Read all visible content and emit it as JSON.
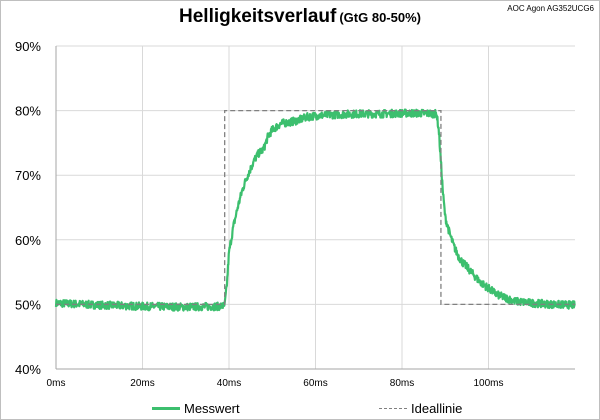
{
  "colors": {
    "messwert": "#3cbf6e",
    "ideallinie": "#808080",
    "grid": "#d9d9d9"
  },
  "device_label": "AOC Agon AG352UCG6",
  "chart_data": {
    "type": "line",
    "title": "Helligkeitsverlauf",
    "subtitle": "(GtG 80-50%)",
    "xlabel": "",
    "ylabel": "",
    "xlim": [
      0,
      120
    ],
    "ylim": [
      40,
      90
    ],
    "x_ticks": [
      0,
      20,
      40,
      60,
      80,
      100
    ],
    "x_tick_labels": [
      "0ms",
      "20ms",
      "40ms",
      "60ms",
      "80ms",
      "100ms"
    ],
    "y_ticks": [
      40,
      50,
      60,
      70,
      80,
      90
    ],
    "y_tick_labels": [
      "40%",
      "50%",
      "60%",
      "70%",
      "80%",
      "90%"
    ],
    "grid": true,
    "legend_position": "bottom",
    "series": [
      {
        "name": "Messwert",
        "style": "solid",
        "x": [
          0,
          10,
          20,
          30,
          38,
          39,
          39.5,
          40,
          41,
          42,
          43,
          44,
          45,
          46,
          47,
          48,
          49,
          50,
          52,
          54,
          56,
          58,
          60,
          65,
          70,
          75,
          80,
          85,
          88,
          88.5,
          89,
          89.5,
          90,
          91,
          92,
          93,
          94,
          95,
          96,
          98,
          100,
          102,
          104,
          106,
          110,
          115,
          120
        ],
        "y": [
          50.2,
          49.9,
          49.7,
          49.6,
          49.7,
          49.8,
          53,
          58,
          62,
          65,
          67.5,
          69.5,
          71,
          72.5,
          73.5,
          74,
          76,
          77,
          78,
          78.2,
          78.5,
          79,
          79.2,
          79.4,
          79.5,
          79.5,
          79.6,
          79.6,
          79.5,
          77,
          72,
          67,
          63.5,
          61,
          59,
          57.5,
          56.5,
          55.8,
          55,
          53.5,
          52.5,
          51.5,
          51,
          50.5,
          50.2,
          50,
          49.9
        ],
        "noise": 0.6
      },
      {
        "name": "Ideallinie",
        "style": "dashed",
        "x": [
          0,
          39,
          39,
          89,
          89,
          120
        ],
        "y": [
          50,
          50,
          80,
          80,
          50,
          50
        ]
      }
    ]
  }
}
